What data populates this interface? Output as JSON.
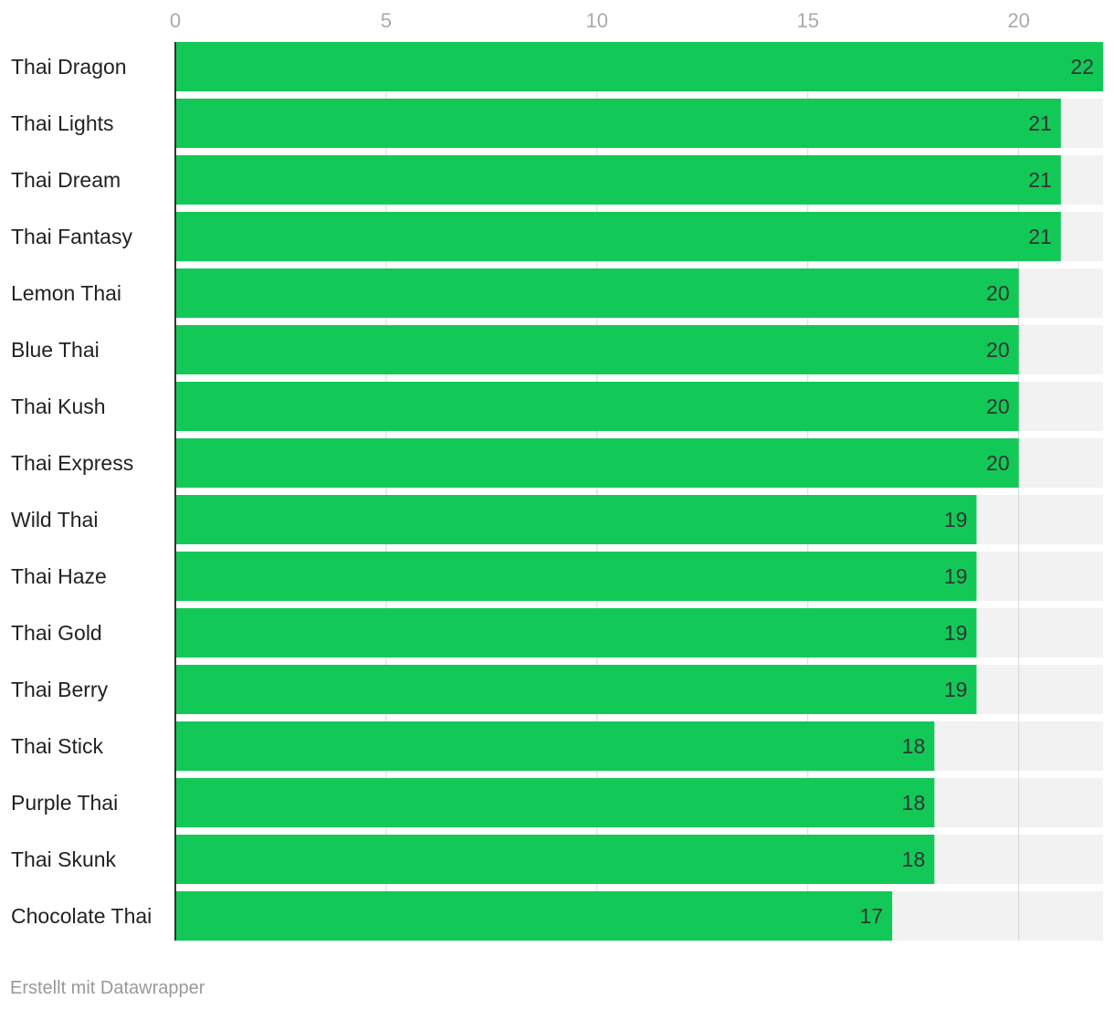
{
  "chart_data": {
    "type": "bar",
    "orientation": "horizontal",
    "categories": [
      "Thai Dragon",
      "Thai Lights",
      "Thai Dream",
      "Thai Fantasy",
      "Lemon Thai",
      "Blue Thai",
      "Thai Kush",
      "Thai Express",
      "Wild Thai",
      "Thai Haze",
      "Thai Gold",
      "Thai Berry",
      "Thai Stick",
      "Purple Thai",
      "Thai Skunk",
      "Chocolate Thai"
    ],
    "values": [
      22,
      21,
      21,
      21,
      20,
      20,
      20,
      20,
      19,
      19,
      19,
      19,
      18,
      18,
      18,
      17
    ],
    "data_labels": [
      "22",
      "21",
      "21",
      "21",
      "20",
      "20",
      "20",
      "20",
      "19",
      "19",
      "19",
      "19",
      "18",
      "18",
      "18",
      "17"
    ],
    "xlim": [
      0,
      22
    ],
    "x_ticks": [
      0,
      5,
      10,
      15,
      20
    ],
    "x_tick_labels": [
      "0",
      "5",
      "10",
      "15",
      "20"
    ],
    "x_axis_position": "top",
    "grid": true,
    "colors": {
      "bar": "#12c957",
      "bar_background": "#f2f2f2",
      "gridline": "#d6d6d6",
      "axis_line": "#333333",
      "tick_label": "#aaaaaa",
      "category_label": "#222222",
      "value_label": "#333333"
    }
  },
  "footer": {
    "credit": "Erstellt mit Datawrapper"
  }
}
